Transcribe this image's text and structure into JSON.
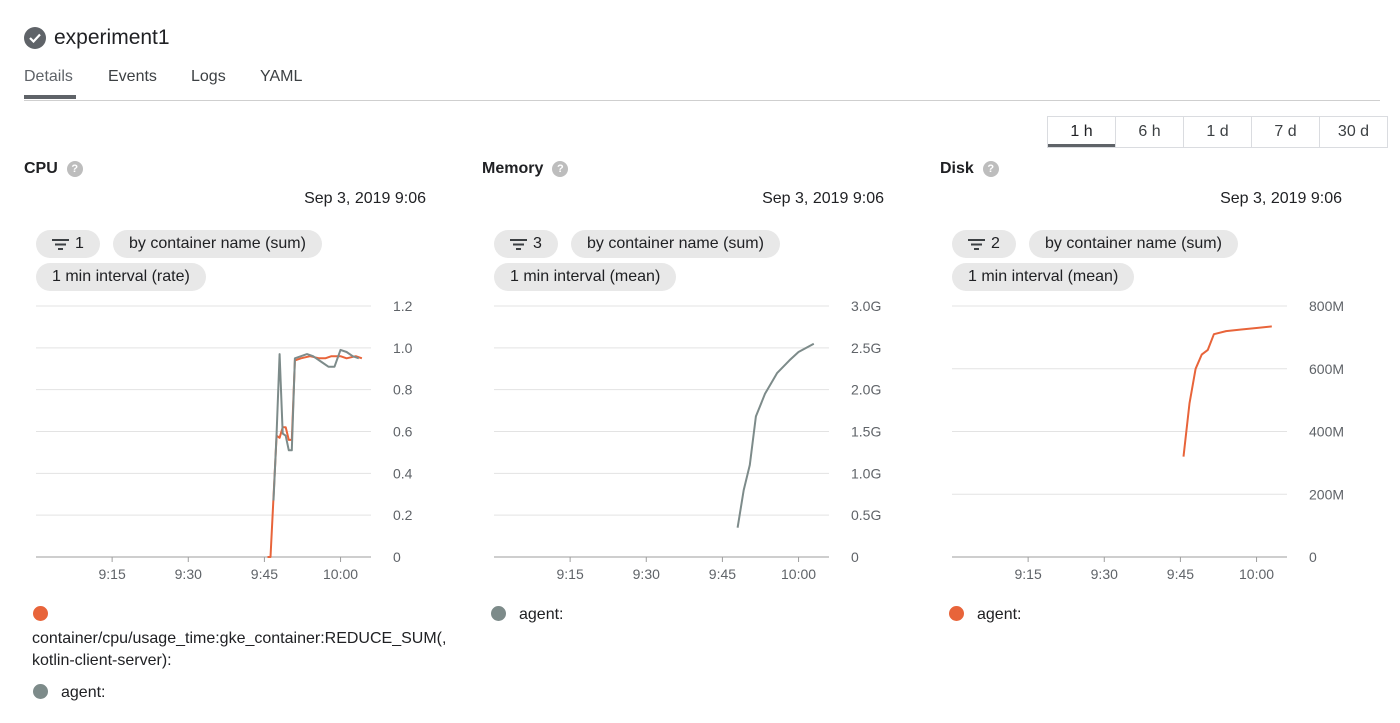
{
  "header": {
    "title": "experiment1",
    "status_icon": "check-circle-icon"
  },
  "tabs": [
    {
      "label": "Details",
      "active": true
    },
    {
      "label": "Events",
      "active": false
    },
    {
      "label": "Logs",
      "active": false
    },
    {
      "label": "YAML",
      "active": false
    }
  ],
  "time_range": {
    "options": [
      "1 h",
      "6 h",
      "1 d",
      "7 d",
      "30 d"
    ],
    "selected": "1 h"
  },
  "panels": [
    {
      "title": "CPU",
      "timestamp": "Sep 3, 2019 9:06",
      "filter_count": "1",
      "group_by": "by container name (sum)",
      "interval": "1 min interval (rate)",
      "legend": [
        {
          "label": "container/cpu/usage_time:gke_container:REDUCE_SUM(, kotlin-client-server):",
          "color": "#e8643a"
        },
        {
          "label": "agent:",
          "color": "#7d8b8a"
        }
      ]
    },
    {
      "title": "Memory",
      "timestamp": "Sep 3, 2019 9:06",
      "filter_count": "3",
      "group_by": "by container name (sum)",
      "interval": "1 min interval (mean)",
      "legend": [
        {
          "label": "agent:",
          "color": "#7d8b8a"
        }
      ]
    },
    {
      "title": "Disk",
      "timestamp": "Sep 3, 2019 9:06",
      "filter_count": "2",
      "group_by": "by container name (sum)",
      "interval": "1 min interval (mean)",
      "legend": [
        {
          "label": "agent:",
          "color": "#e8643a"
        }
      ]
    }
  ],
  "chart_data": [
    {
      "type": "line",
      "title": "CPU",
      "x_ticks": [
        "9:15",
        "9:30",
        "9:45",
        "10:00"
      ],
      "y_ticks": [
        "0",
        "0.2",
        "0.4",
        "0.6",
        "0.8",
        "1.0",
        "1.2"
      ],
      "ylim": [
        0,
        1.2
      ],
      "xlim": [
        9.0,
        10.1
      ],
      "grid": true,
      "series": [
        {
          "color": "#e8643a",
          "points": [
            [
              9.76,
              0
            ],
            [
              9.77,
              0
            ],
            [
              9.79,
              0.58
            ],
            [
              9.8,
              0.57
            ],
            [
              9.81,
              0.62
            ],
            [
              9.82,
              0.62
            ],
            [
              9.83,
              0.56
            ],
            [
              9.84,
              0.56
            ],
            [
              9.85,
              0.94
            ],
            [
              9.87,
              0.95
            ],
            [
              9.9,
              0.96
            ],
            [
              9.93,
              0.95
            ],
            [
              9.95,
              0.95
            ],
            [
              9.97,
              0.96
            ],
            [
              10.0,
              0.96
            ],
            [
              10.02,
              0.95
            ],
            [
              10.05,
              0.96
            ],
            [
              10.07,
              0.95
            ]
          ]
        },
        {
          "color": "#7d8b8a",
          "points": [
            [
              9.78,
              0.27
            ],
            [
              9.79,
              0.59
            ],
            [
              9.8,
              0.97
            ],
            [
              9.81,
              0.59
            ],
            [
              9.82,
              0.58
            ],
            [
              9.83,
              0.51
            ],
            [
              9.84,
              0.51
            ],
            [
              9.85,
              0.95
            ],
            [
              9.87,
              0.96
            ],
            [
              9.89,
              0.97
            ],
            [
              9.91,
              0.96
            ],
            [
              9.94,
              0.93
            ],
            [
              9.96,
              0.91
            ],
            [
              9.98,
              0.91
            ],
            [
              10.0,
              0.99
            ],
            [
              10.02,
              0.98
            ],
            [
              10.04,
              0.96
            ],
            [
              10.06,
              0.95
            ]
          ]
        }
      ]
    },
    {
      "type": "line",
      "title": "Memory",
      "x_ticks": [
        "9:15",
        "9:30",
        "9:45",
        "10:00"
      ],
      "y_ticks": [
        "0",
        "0.5G",
        "1.0G",
        "1.5G",
        "2.0G",
        "2.5G",
        "3.0G"
      ],
      "ylim": [
        0,
        3.0
      ],
      "xlim": [
        9.0,
        10.1
      ],
      "grid": true,
      "series": [
        {
          "color": "#7d8b8a",
          "points": [
            [
              9.8,
              0.35
            ],
            [
              9.82,
              0.8
            ],
            [
              9.84,
              1.1
            ],
            [
              9.86,
              1.68
            ],
            [
              9.89,
              1.95
            ],
            [
              9.93,
              2.2
            ],
            [
              9.97,
              2.35
            ],
            [
              10.0,
              2.45
            ],
            [
              10.05,
              2.55
            ]
          ]
        }
      ]
    },
    {
      "type": "line",
      "title": "Disk",
      "x_ticks": [
        "9:15",
        "9:30",
        "9:45",
        "10:00"
      ],
      "y_ticks": [
        "0",
        "200M",
        "400M",
        "600M",
        "800M"
      ],
      "ylim": [
        0,
        800
      ],
      "xlim": [
        9.0,
        10.1
      ],
      "grid": true,
      "series": [
        {
          "color": "#e8643a",
          "points": [
            [
              9.76,
              320
            ],
            [
              9.78,
              490
            ],
            [
              9.8,
              600
            ],
            [
              9.82,
              645
            ],
            [
              9.84,
              660
            ],
            [
              9.86,
              710
            ],
            [
              9.9,
              720
            ],
            [
              9.95,
              725
            ],
            [
              10.0,
              730
            ],
            [
              10.05,
              735
            ]
          ]
        }
      ]
    }
  ]
}
